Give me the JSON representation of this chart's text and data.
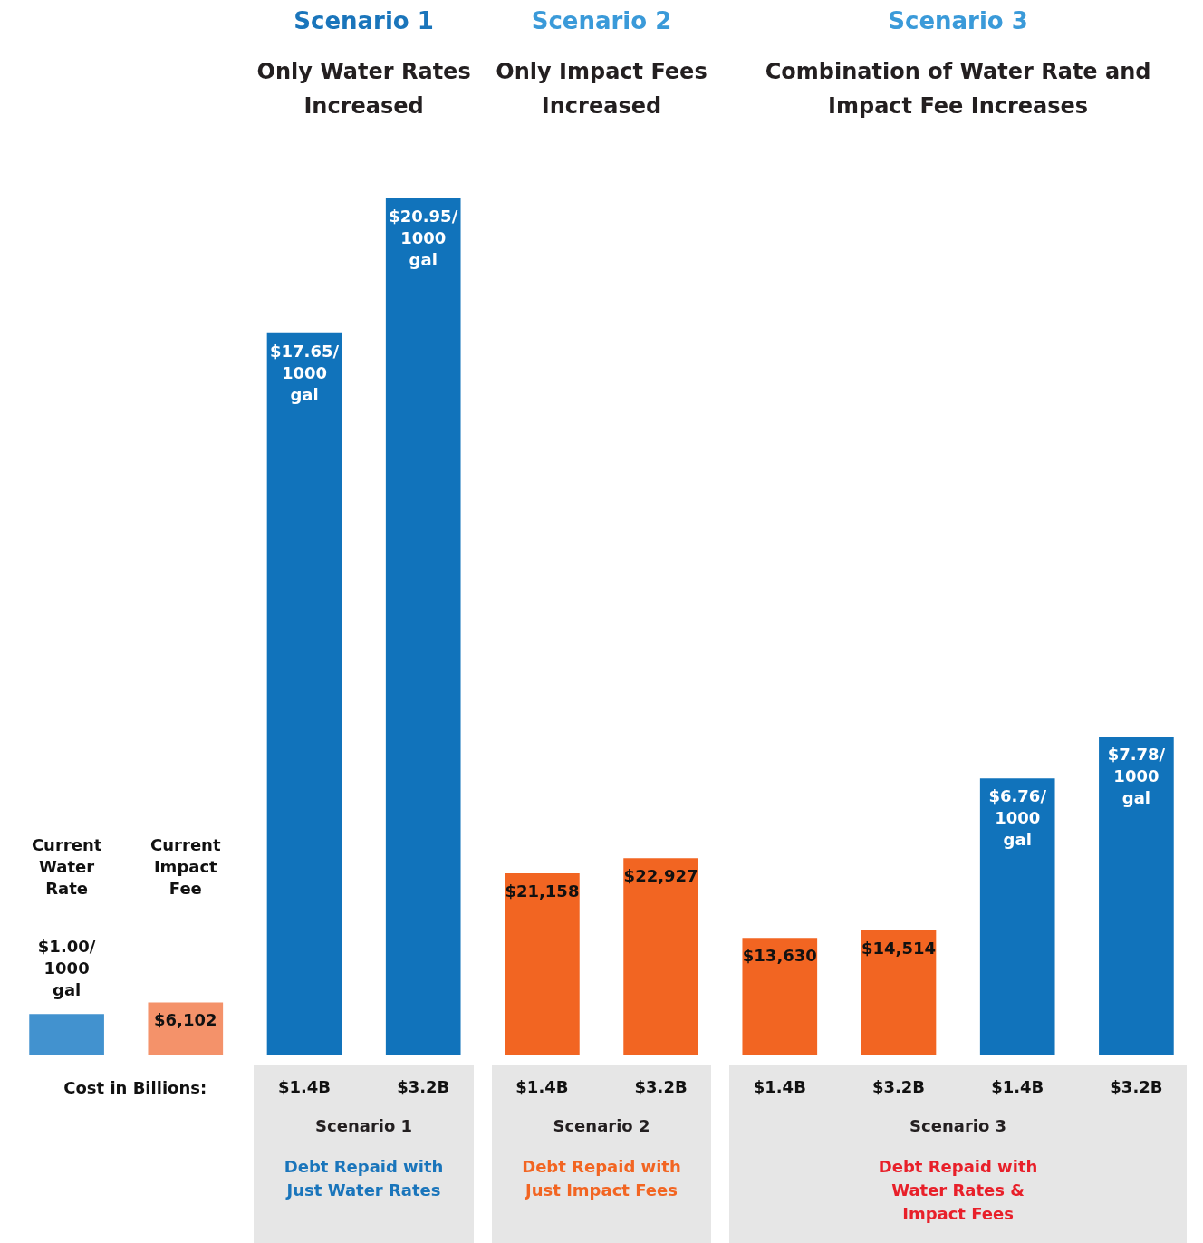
{
  "chart_data": {
    "type": "bar",
    "categories": [
      "Current Water Rate",
      "Current Impact Fee",
      "$1.4B",
      "$3.2B",
      "$1.4B",
      "$3.2B",
      "$1.4B",
      "$3.2B",
      "$1.4B",
      "$3.2B"
    ],
    "series": [
      {
        "axis": "y",
        "colors": [
          "#4292cf",
          null,
          "#1173bb",
          "#1173bb",
          null,
          null,
          null,
          null,
          "#1173bb",
          "#1173bb"
        ],
        "values": [
          1.0,
          null,
          17.65,
          20.95,
          null,
          null,
          null,
          null,
          6.76,
          7.78
        ],
        "value_labels": [
          "$1.00/ 1000 gal",
          null,
          "$17.65/ 1000 gal",
          "$20.95/ 1000 gal",
          null,
          null,
          null,
          null,
          "$6.76/ 1000 gal",
          "$7.78/ 1000 gal"
        ]
      },
      {
        "axis": "y2",
        "colors": [
          null,
          "#f4926a",
          null,
          null,
          "#f26522",
          "#f26522",
          "#f26522",
          "#f26522",
          null,
          null
        ],
        "values": [
          null,
          6102,
          null,
          null,
          21158,
          22927,
          13630,
          14514,
          null,
          null
        ],
        "value_labels": [
          null,
          "$6,102",
          null,
          null,
          "$21,158",
          "$22,927",
          "$13,630",
          "$14,514",
          null,
          null
        ]
      }
    ],
    "annotations": [
      "Scenario 1",
      "Only Water Rates Increased",
      "Scenario 2",
      "Only Impact Fees Increased",
      "Scenario 3",
      "Combination of Water Rate and Impact Fee Increases",
      "Cost in Billions:",
      "Scenario 1",
      "Debt Repaid with Just Water Rates",
      "Scenario 2",
      "Debt Repaid with Just Impact Fees",
      "Scenario 3",
      "Debt Repaid with Water Rates & Impact Fees"
    ],
    "tick_labels": "x",
    "grid": false,
    "legend": false
  }
}
